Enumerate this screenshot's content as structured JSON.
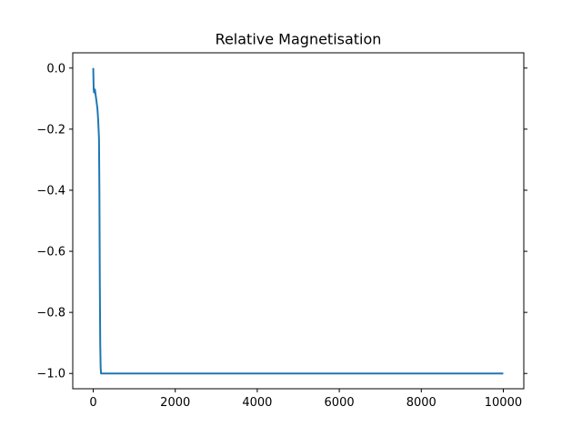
{
  "chart_data": {
    "type": "line",
    "title": "Relative Magnetisation",
    "xlabel": "",
    "ylabel": "",
    "xlim": [
      -500,
      10500
    ],
    "ylim": [
      -1.05,
      0.05
    ],
    "x_ticks": [
      0,
      2000,
      4000,
      6000,
      8000,
      10000
    ],
    "x_tick_labels": [
      "0",
      "2000",
      "4000",
      "6000",
      "8000",
      "10000"
    ],
    "y_ticks": [
      0.0,
      -0.2,
      -0.4,
      -0.6,
      -0.8,
      -1.0
    ],
    "y_tick_labels": [
      "0.0",
      "−0.2",
      "−0.4",
      "−0.6",
      "−0.8",
      "−1.0"
    ],
    "grid": false,
    "series": [
      {
        "color": "#1f77b4",
        "x": [
          0,
          10,
          20,
          30,
          40,
          50,
          60,
          70,
          80,
          90,
          100,
          110,
          120,
          130,
          140,
          150,
          160,
          170,
          180,
          190,
          200,
          210,
          220,
          230,
          240,
          250,
          300,
          500,
          1000,
          2000,
          4000,
          6000,
          8000,
          10000
        ],
        "y": [
          0.0,
          -0.07,
          -0.08,
          -0.075,
          -0.07,
          -0.08,
          -0.09,
          -0.1,
          -0.11,
          -0.12,
          -0.13,
          -0.15,
          -0.17,
          -0.2,
          -0.23,
          -0.4,
          -0.7,
          -0.9,
          -0.98,
          -1.0,
          -1.0,
          -1.0,
          -1.0,
          -1.0,
          -1.0,
          -1.0,
          -1.0,
          -1.0,
          -1.0,
          -1.0,
          -1.0,
          -1.0,
          -1.0,
          -1.0
        ]
      }
    ]
  }
}
